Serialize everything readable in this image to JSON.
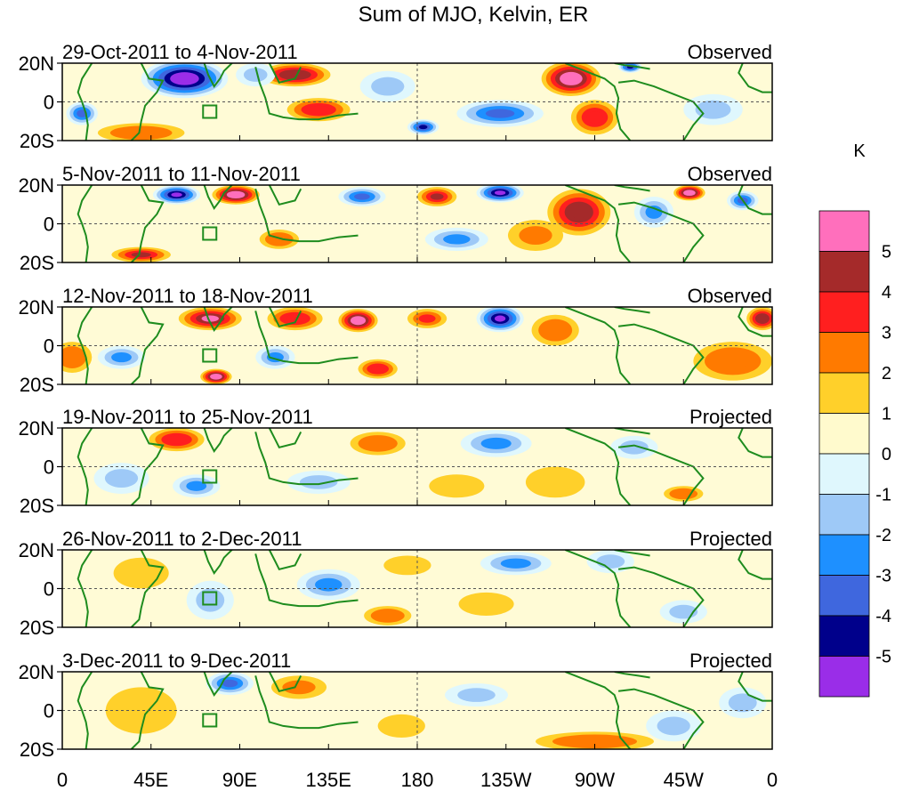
{
  "chart_data": {
    "type": "heatmap",
    "title": "Sum of MJO, Kelvin, ER",
    "units": "K",
    "x_ticks": [
      "0",
      "45E",
      "90E",
      "135E",
      "180",
      "135W",
      "90W",
      "45W",
      "0"
    ],
    "y_ticks": [
      "20N",
      "0",
      "20S"
    ],
    "x_range_deg": [
      0,
      360
    ],
    "lat_range_deg": [
      -20,
      20
    ],
    "colorbar": {
      "levels": [
        -5,
        -4,
        -3,
        -2,
        -1,
        0,
        1,
        2,
        3,
        4,
        5
      ],
      "labels": [
        "5",
        "4",
        "3",
        "2",
        "1",
        "0",
        "-1",
        "-2",
        "-3",
        "-4",
        "-5"
      ],
      "colors": [
        "#9a2de8",
        "#00008b",
        "#3f67de",
        "#1e90ff",
        "#9ec9f7",
        "#dff7fd",
        "#fffacd",
        "#ffd02a",
        "#ff7a00",
        "#ff1f1f",
        "#a52a2a",
        "#ff6fbc"
      ]
    },
    "panels": [
      {
        "date_range": "29-Oct-2011 to 4-Nov-2011",
        "status": "Observed",
        "anomalies": [
          {
            "lon": 62,
            "lat": 12,
            "value": -6.5,
            "rx": 22,
            "ry": 10
          },
          {
            "lon": 118,
            "lat": 14,
            "value": 4.5,
            "rx": 18,
            "ry": 6
          },
          {
            "lon": 130,
            "lat": -4,
            "value": 3.5,
            "rx": 16,
            "ry": 6
          },
          {
            "lon": 258,
            "lat": 12,
            "value": 5.2,
            "rx": 15,
            "ry": 9
          },
          {
            "lon": 270,
            "lat": -8,
            "value": 3.5,
            "rx": 12,
            "ry": 9
          },
          {
            "lon": 222,
            "lat": -6,
            "value": -3.8,
            "rx": 22,
            "ry": 7
          },
          {
            "lon": 183,
            "lat": -13,
            "value": -4.5,
            "rx": 8,
            "ry": 4
          },
          {
            "lon": 10,
            "lat": -6,
            "value": -3.5,
            "rx": 8,
            "ry": 6
          },
          {
            "lon": 40,
            "lat": -16,
            "value": 2.5,
            "rx": 22,
            "ry": 5
          },
          {
            "lon": 288,
            "lat": 18,
            "value": -4.8,
            "rx": 6,
            "ry": 3
          },
          {
            "lon": 98,
            "lat": 14,
            "value": -2.0,
            "rx": 10,
            "ry": 6
          },
          {
            "lon": 165,
            "lat": 8,
            "value": -2.0,
            "rx": 14,
            "ry": 8
          },
          {
            "lon": 330,
            "lat": -4,
            "value": -1.5,
            "rx": 15,
            "ry": 8
          }
        ]
      },
      {
        "date_range": "5-Nov-2011 to 11-Nov-2011",
        "status": "Observed",
        "anomalies": [
          {
            "lon": 58,
            "lat": 15,
            "value": -6.0,
            "rx": 12,
            "ry": 5
          },
          {
            "lon": 88,
            "lat": 15,
            "value": 5.2,
            "rx": 12,
            "ry": 5
          },
          {
            "lon": 152,
            "lat": 14,
            "value": -3.8,
            "rx": 12,
            "ry": 5
          },
          {
            "lon": 190,
            "lat": 14,
            "value": 4.0,
            "rx": 10,
            "ry": 5
          },
          {
            "lon": 222,
            "lat": 16,
            "value": -6.0,
            "rx": 12,
            "ry": 5
          },
          {
            "lon": 262,
            "lat": 6,
            "value": 4.2,
            "rx": 16,
            "ry": 12
          },
          {
            "lon": 300,
            "lat": 6,
            "value": -3.0,
            "rx": 10,
            "ry": 8
          },
          {
            "lon": 318,
            "lat": 16,
            "value": 5.2,
            "rx": 8,
            "ry": 4
          },
          {
            "lon": 345,
            "lat": 12,
            "value": -3.5,
            "rx": 8,
            "ry": 5
          },
          {
            "lon": 40,
            "lat": -16,
            "value": 4.0,
            "rx": 15,
            "ry": 4
          },
          {
            "lon": 200,
            "lat": -8,
            "value": -3.0,
            "rx": 16,
            "ry": 6
          },
          {
            "lon": 240,
            "lat": -6,
            "value": 2.0,
            "rx": 14,
            "ry": 8
          },
          {
            "lon": 110,
            "lat": -8,
            "value": 2.5,
            "rx": 10,
            "ry": 5
          }
        ]
      },
      {
        "date_range": "12-Nov-2011 to 18-Nov-2011",
        "status": "Observed",
        "anomalies": [
          {
            "lon": 75,
            "lat": 14,
            "value": 5.0,
            "rx": 16,
            "ry": 6
          },
          {
            "lon": 118,
            "lat": 14,
            "value": 3.5,
            "rx": 14,
            "ry": 6
          },
          {
            "lon": 150,
            "lat": 13,
            "value": 5.2,
            "rx": 10,
            "ry": 6
          },
          {
            "lon": 185,
            "lat": 14,
            "value": 3.0,
            "rx": 10,
            "ry": 5
          },
          {
            "lon": 222,
            "lat": 14,
            "value": -6.0,
            "rx": 12,
            "ry": 7
          },
          {
            "lon": 250,
            "lat": 8,
            "value": 2.5,
            "rx": 12,
            "ry": 8
          },
          {
            "lon": 355,
            "lat": 14,
            "value": 4.5,
            "rx": 8,
            "ry": 6
          },
          {
            "lon": 78,
            "lat": -16,
            "value": 5.2,
            "rx": 8,
            "ry": 4
          },
          {
            "lon": 108,
            "lat": -6,
            "value": -2.5,
            "rx": 10,
            "ry": 6
          },
          {
            "lon": 160,
            "lat": -12,
            "value": 3.5,
            "rx": 10,
            "ry": 5
          },
          {
            "lon": 30,
            "lat": -6,
            "value": -2.5,
            "rx": 12,
            "ry": 6
          },
          {
            "lon": 340,
            "lat": -8,
            "value": 2.5,
            "rx": 20,
            "ry": 10
          },
          {
            "lon": 5,
            "lat": -6,
            "value": 2.5,
            "rx": 10,
            "ry": 8
          }
        ]
      },
      {
        "date_range": "19-Nov-2011 to 25-Nov-2011",
        "status": "Projected",
        "anomalies": [
          {
            "lon": 58,
            "lat": 14,
            "value": 3.8,
            "rx": 14,
            "ry": 6
          },
          {
            "lon": 68,
            "lat": -10,
            "value": -2.5,
            "rx": 12,
            "ry": 6
          },
          {
            "lon": 160,
            "lat": 12,
            "value": 2.2,
            "rx": 14,
            "ry": 6
          },
          {
            "lon": 220,
            "lat": 12,
            "value": -2.5,
            "rx": 18,
            "ry": 7
          },
          {
            "lon": 250,
            "lat": -8,
            "value": 1.5,
            "rx": 15,
            "ry": 8
          },
          {
            "lon": 315,
            "lat": -14,
            "value": 2.8,
            "rx": 10,
            "ry": 4
          },
          {
            "lon": 200,
            "lat": -10,
            "value": 1.5,
            "rx": 14,
            "ry": 6
          },
          {
            "lon": 130,
            "lat": -8,
            "value": -1.5,
            "rx": 16,
            "ry": 6
          },
          {
            "lon": 30,
            "lat": -6,
            "value": -1.5,
            "rx": 14,
            "ry": 8
          },
          {
            "lon": 290,
            "lat": 10,
            "value": -1.5,
            "rx": 12,
            "ry": 6
          }
        ]
      },
      {
        "date_range": "26-Nov-2011 to 2-Dec-2011",
        "status": "Projected",
        "anomalies": [
          {
            "lon": 230,
            "lat": 13,
            "value": -2.5,
            "rx": 18,
            "ry": 6
          },
          {
            "lon": 278,
            "lat": 14,
            "value": -2.0,
            "rx": 12,
            "ry": 6
          },
          {
            "lon": 135,
            "lat": 2,
            "value": -2.5,
            "rx": 16,
            "ry": 8
          },
          {
            "lon": 165,
            "lat": -14,
            "value": 2.8,
            "rx": 12,
            "ry": 5
          },
          {
            "lon": 75,
            "lat": -6,
            "value": -2.0,
            "rx": 12,
            "ry": 10
          },
          {
            "lon": 40,
            "lat": 8,
            "value": 1.5,
            "rx": 14,
            "ry": 8
          },
          {
            "lon": 315,
            "lat": -12,
            "value": -2.0,
            "rx": 12,
            "ry": 6
          },
          {
            "lon": 215,
            "lat": -8,
            "value": 1.5,
            "rx": 14,
            "ry": 6
          },
          {
            "lon": 175,
            "lat": 12,
            "value": 1.5,
            "rx": 12,
            "ry": 5
          }
        ]
      },
      {
        "date_range": "3-Dec-2011 to 9-Dec-2011",
        "status": "Projected",
        "anomalies": [
          {
            "lon": 85,
            "lat": 14,
            "value": -3.5,
            "rx": 12,
            "ry": 6
          },
          {
            "lon": 40,
            "lat": 0,
            "value": 1.5,
            "rx": 18,
            "ry": 12
          },
          {
            "lon": 120,
            "lat": 12,
            "value": 2.0,
            "rx": 14,
            "ry": 6
          },
          {
            "lon": 210,
            "lat": 8,
            "value": -1.8,
            "rx": 16,
            "ry": 6
          },
          {
            "lon": 270,
            "lat": -16,
            "value": 2.2,
            "rx": 30,
            "ry": 5
          },
          {
            "lon": 310,
            "lat": -8,
            "value": -1.5,
            "rx": 14,
            "ry": 8
          },
          {
            "lon": 172,
            "lat": -8,
            "value": 1.5,
            "rx": 12,
            "ry": 6
          },
          {
            "lon": 345,
            "lat": 4,
            "value": -1.5,
            "rx": 12,
            "ry": 8
          }
        ]
      }
    ]
  }
}
